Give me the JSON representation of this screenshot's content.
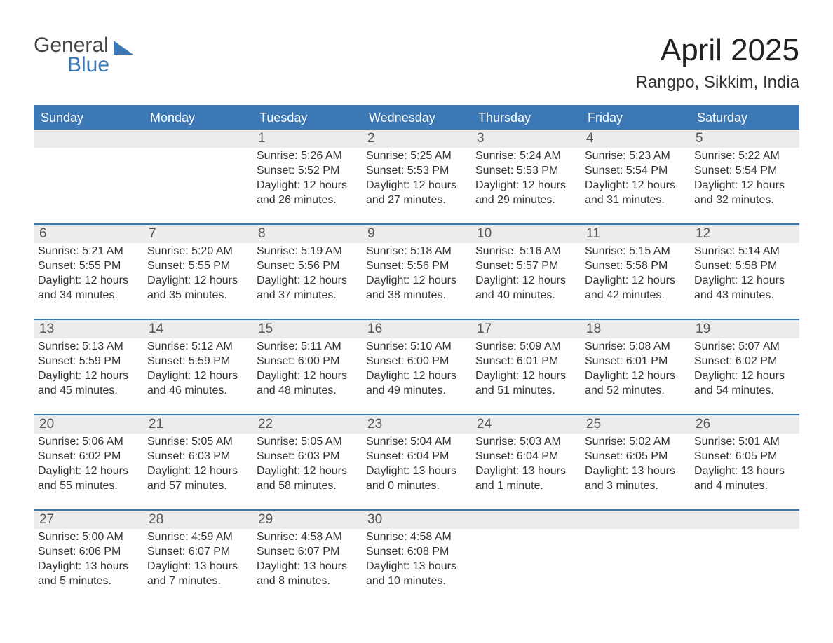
{
  "logo": {
    "word1": "General",
    "word2": "Blue"
  },
  "title": "April 2025",
  "location": "Rangpo, Sikkim, India",
  "colors": {
    "header_bg": "#3b78b5",
    "header_text": "#ffffff",
    "band_bg": "#ececec",
    "rule": "#3b78b5",
    "text": "#333333",
    "muted": "#555555",
    "page_bg": "#ffffff"
  },
  "fonts": {
    "title_size_pt": 33,
    "location_size_pt": 18,
    "dow_size_pt": 14,
    "body_size_pt": 12,
    "daynum_size_pt": 14
  },
  "dow": [
    "Sunday",
    "Monday",
    "Tuesday",
    "Wednesday",
    "Thursday",
    "Friday",
    "Saturday"
  ],
  "weeks": [
    [
      null,
      null,
      {
        "n": "1",
        "sr": "Sunrise: 5:26 AM",
        "ss": "Sunset: 5:52 PM",
        "d1": "Daylight: 12 hours",
        "d2": "and 26 minutes."
      },
      {
        "n": "2",
        "sr": "Sunrise: 5:25 AM",
        "ss": "Sunset: 5:53 PM",
        "d1": "Daylight: 12 hours",
        "d2": "and 27 minutes."
      },
      {
        "n": "3",
        "sr": "Sunrise: 5:24 AM",
        "ss": "Sunset: 5:53 PM",
        "d1": "Daylight: 12 hours",
        "d2": "and 29 minutes."
      },
      {
        "n": "4",
        "sr": "Sunrise: 5:23 AM",
        "ss": "Sunset: 5:54 PM",
        "d1": "Daylight: 12 hours",
        "d2": "and 31 minutes."
      },
      {
        "n": "5",
        "sr": "Sunrise: 5:22 AM",
        "ss": "Sunset: 5:54 PM",
        "d1": "Daylight: 12 hours",
        "d2": "and 32 minutes."
      }
    ],
    [
      {
        "n": "6",
        "sr": "Sunrise: 5:21 AM",
        "ss": "Sunset: 5:55 PM",
        "d1": "Daylight: 12 hours",
        "d2": "and 34 minutes."
      },
      {
        "n": "7",
        "sr": "Sunrise: 5:20 AM",
        "ss": "Sunset: 5:55 PM",
        "d1": "Daylight: 12 hours",
        "d2": "and 35 minutes."
      },
      {
        "n": "8",
        "sr": "Sunrise: 5:19 AM",
        "ss": "Sunset: 5:56 PM",
        "d1": "Daylight: 12 hours",
        "d2": "and 37 minutes."
      },
      {
        "n": "9",
        "sr": "Sunrise: 5:18 AM",
        "ss": "Sunset: 5:56 PM",
        "d1": "Daylight: 12 hours",
        "d2": "and 38 minutes."
      },
      {
        "n": "10",
        "sr": "Sunrise: 5:16 AM",
        "ss": "Sunset: 5:57 PM",
        "d1": "Daylight: 12 hours",
        "d2": "and 40 minutes."
      },
      {
        "n": "11",
        "sr": "Sunrise: 5:15 AM",
        "ss": "Sunset: 5:58 PM",
        "d1": "Daylight: 12 hours",
        "d2": "and 42 minutes."
      },
      {
        "n": "12",
        "sr": "Sunrise: 5:14 AM",
        "ss": "Sunset: 5:58 PM",
        "d1": "Daylight: 12 hours",
        "d2": "and 43 minutes."
      }
    ],
    [
      {
        "n": "13",
        "sr": "Sunrise: 5:13 AM",
        "ss": "Sunset: 5:59 PM",
        "d1": "Daylight: 12 hours",
        "d2": "and 45 minutes."
      },
      {
        "n": "14",
        "sr": "Sunrise: 5:12 AM",
        "ss": "Sunset: 5:59 PM",
        "d1": "Daylight: 12 hours",
        "d2": "and 46 minutes."
      },
      {
        "n": "15",
        "sr": "Sunrise: 5:11 AM",
        "ss": "Sunset: 6:00 PM",
        "d1": "Daylight: 12 hours",
        "d2": "and 48 minutes."
      },
      {
        "n": "16",
        "sr": "Sunrise: 5:10 AM",
        "ss": "Sunset: 6:00 PM",
        "d1": "Daylight: 12 hours",
        "d2": "and 49 minutes."
      },
      {
        "n": "17",
        "sr": "Sunrise: 5:09 AM",
        "ss": "Sunset: 6:01 PM",
        "d1": "Daylight: 12 hours",
        "d2": "and 51 minutes."
      },
      {
        "n": "18",
        "sr": "Sunrise: 5:08 AM",
        "ss": "Sunset: 6:01 PM",
        "d1": "Daylight: 12 hours",
        "d2": "and 52 minutes."
      },
      {
        "n": "19",
        "sr": "Sunrise: 5:07 AM",
        "ss": "Sunset: 6:02 PM",
        "d1": "Daylight: 12 hours",
        "d2": "and 54 minutes."
      }
    ],
    [
      {
        "n": "20",
        "sr": "Sunrise: 5:06 AM",
        "ss": "Sunset: 6:02 PM",
        "d1": "Daylight: 12 hours",
        "d2": "and 55 minutes."
      },
      {
        "n": "21",
        "sr": "Sunrise: 5:05 AM",
        "ss": "Sunset: 6:03 PM",
        "d1": "Daylight: 12 hours",
        "d2": "and 57 minutes."
      },
      {
        "n": "22",
        "sr": "Sunrise: 5:05 AM",
        "ss": "Sunset: 6:03 PM",
        "d1": "Daylight: 12 hours",
        "d2": "and 58 minutes."
      },
      {
        "n": "23",
        "sr": "Sunrise: 5:04 AM",
        "ss": "Sunset: 6:04 PM",
        "d1": "Daylight: 13 hours",
        "d2": "and 0 minutes."
      },
      {
        "n": "24",
        "sr": "Sunrise: 5:03 AM",
        "ss": "Sunset: 6:04 PM",
        "d1": "Daylight: 13 hours",
        "d2": "and 1 minute."
      },
      {
        "n": "25",
        "sr": "Sunrise: 5:02 AM",
        "ss": "Sunset: 6:05 PM",
        "d1": "Daylight: 13 hours",
        "d2": "and 3 minutes."
      },
      {
        "n": "26",
        "sr": "Sunrise: 5:01 AM",
        "ss": "Sunset: 6:05 PM",
        "d1": "Daylight: 13 hours",
        "d2": "and 4 minutes."
      }
    ],
    [
      {
        "n": "27",
        "sr": "Sunrise: 5:00 AM",
        "ss": "Sunset: 6:06 PM",
        "d1": "Daylight: 13 hours",
        "d2": "and 5 minutes."
      },
      {
        "n": "28",
        "sr": "Sunrise: 4:59 AM",
        "ss": "Sunset: 6:07 PM",
        "d1": "Daylight: 13 hours",
        "d2": "and 7 minutes."
      },
      {
        "n": "29",
        "sr": "Sunrise: 4:58 AM",
        "ss": "Sunset: 6:07 PM",
        "d1": "Daylight: 13 hours",
        "d2": "and 8 minutes."
      },
      {
        "n": "30",
        "sr": "Sunrise: 4:58 AM",
        "ss": "Sunset: 6:08 PM",
        "d1": "Daylight: 13 hours",
        "d2": "and 10 minutes."
      },
      null,
      null,
      null
    ]
  ]
}
